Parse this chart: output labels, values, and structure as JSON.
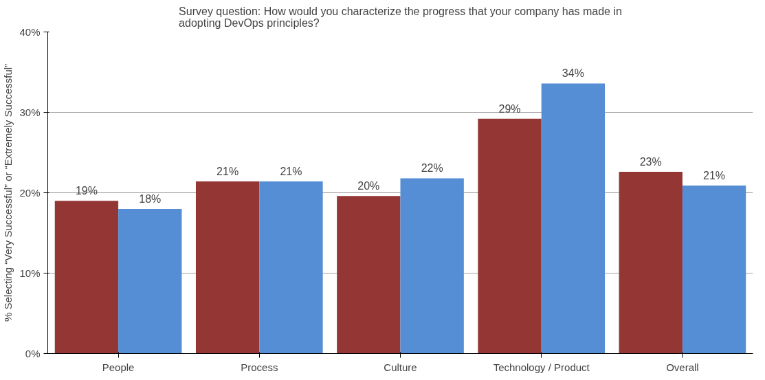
{
  "chart_data": {
    "type": "bar",
    "title": "Survey question: How would you characterize the progress that your company has made in adopting DevOps principles?",
    "ylabel": "% Selecting “Very Successful” or “Extremely Successful”",
    "categories": [
      "People",
      "Process",
      "Culture",
      "Technology / Product",
      "Overall"
    ],
    "series": [
      {
        "color": "#943634",
        "values": [
          19.0,
          21.4,
          19.6,
          29.2,
          22.6
        ],
        "value_labels": [
          "19%",
          "21%",
          "20%",
          "29%",
          "23%"
        ]
      },
      {
        "color": "#558ed5",
        "values": [
          18.0,
          21.4,
          21.8,
          33.6,
          20.9
        ],
        "value_labels": [
          "18%",
          "21%",
          "22%",
          "34%",
          "21%"
        ]
      }
    ],
    "ylim": [
      0,
      40
    ],
    "yticks": [
      {
        "value": 0,
        "label": "0%"
      },
      {
        "value": 10,
        "label": "10%"
      },
      {
        "value": 20,
        "label": "20%"
      },
      {
        "value": 30,
        "label": "30%"
      },
      {
        "value": 40,
        "label": "40%"
      }
    ],
    "grid": "y"
  }
}
